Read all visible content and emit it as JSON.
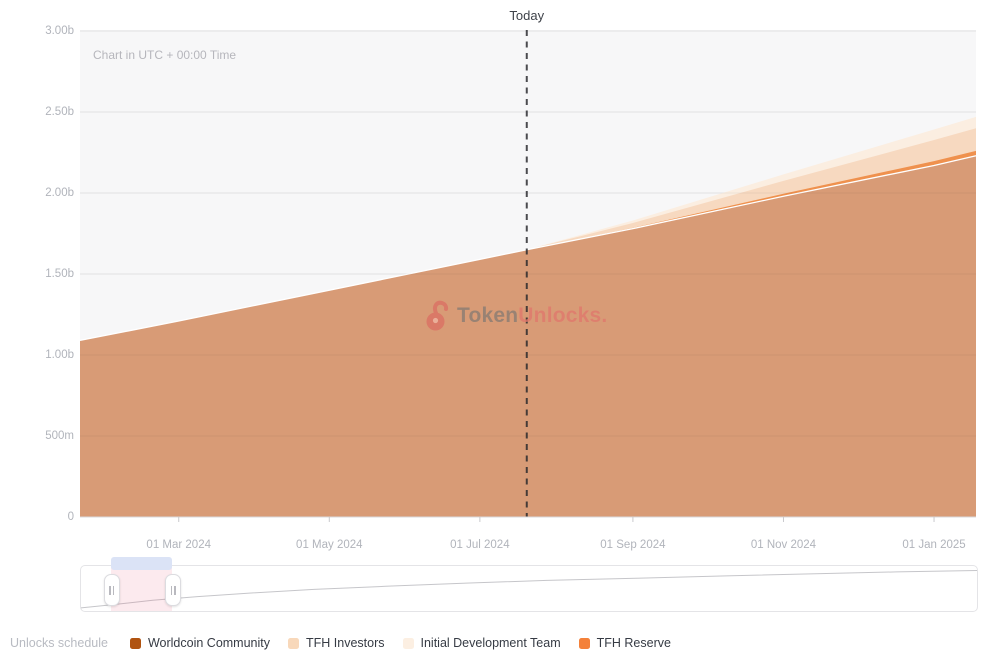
{
  "header": {
    "today_label": "Today"
  },
  "chart_note": "Chart in UTC + 00:00 Time",
  "watermark": {
    "prefix": "Token",
    "suffix": "Unlocks."
  },
  "y_axis": {
    "labels": [
      "3.00b",
      "2.50b",
      "2.00b",
      "1.50b",
      "1.00b",
      "500m",
      "0"
    ],
    "values": [
      3,
      2.5,
      2,
      1.5,
      1,
      0.5,
      0
    ]
  },
  "x_axis": {
    "ticks": [
      {
        "label": "01 Mar 2024",
        "date": "2024-03-01"
      },
      {
        "label": "01 May 2024",
        "date": "2024-05-01"
      },
      {
        "label": "01 Jul 2024",
        "date": "2024-07-01"
      },
      {
        "label": "01 Sep 2024",
        "date": "2024-09-01"
      },
      {
        "label": "01 Nov 2024",
        "date": "2024-11-01"
      },
      {
        "label": "01 Jan 2025",
        "date": "2025-01-01"
      }
    ]
  },
  "legend": {
    "title": "Unlocks schedule",
    "items": [
      {
        "label": "Worldcoin Community",
        "color": "#b05310"
      },
      {
        "label": "TFH Investors",
        "color": "#f8d8ba"
      },
      {
        "label": "Initial Development Team",
        "color": "#fcefe2"
      },
      {
        "label": "TFH Reserve",
        "color": "#f4813a"
      }
    ]
  },
  "chart_data": {
    "type": "area",
    "stacked": true,
    "title": "Token unlocks schedule",
    "unit": "billions of tokens",
    "ylim": [
      0,
      3
    ],
    "grid": true,
    "today": "2024-07-20",
    "x": [
      "2024-01-21",
      "2024-03-01",
      "2024-05-01",
      "2024-07-01",
      "2024-07-20",
      "2024-09-01",
      "2024-11-01",
      "2025-01-01",
      "2025-01-18"
    ],
    "series": [
      {
        "name": "Worldcoin Community",
        "fill": "#d89b76",
        "values": [
          1.09,
          1.21,
          1.4,
          1.59,
          1.65,
          1.78,
          1.98,
          2.17,
          2.23
        ]
      },
      {
        "name": "TFH Reserve",
        "fill": "#ef914e",
        "values": [
          0,
          0,
          0,
          0,
          0,
          0.005,
          0.015,
          0.027,
          0.03
        ]
      },
      {
        "name": "TFH Investors",
        "fill": "#f7d9c0",
        "values": [
          0,
          0,
          0,
          0,
          0,
          0.03,
          0.08,
          0.13,
          0.14
        ]
      },
      {
        "name": "Initial Development Team",
        "fill": "#fbeee1",
        "values": [
          0,
          0,
          0,
          0,
          0,
          0.015,
          0.04,
          0.065,
          0.07
        ]
      }
    ],
    "minimap": {
      "points": [
        [
          0,
          0.93
        ],
        [
          0.04,
          0.85
        ],
        [
          0.08,
          0.76
        ],
        [
          0.13,
          0.68
        ],
        [
          0.19,
          0.6
        ],
        [
          0.26,
          0.52
        ],
        [
          0.34,
          0.45
        ],
        [
          0.43,
          0.38
        ],
        [
          0.52,
          0.32
        ],
        [
          0.62,
          0.27
        ],
        [
          0.72,
          0.22
        ],
        [
          0.82,
          0.17
        ],
        [
          0.91,
          0.13
        ],
        [
          1,
          0.1
        ]
      ],
      "selection": [
        0.033,
        0.102
      ],
      "badge_text": ""
    }
  }
}
